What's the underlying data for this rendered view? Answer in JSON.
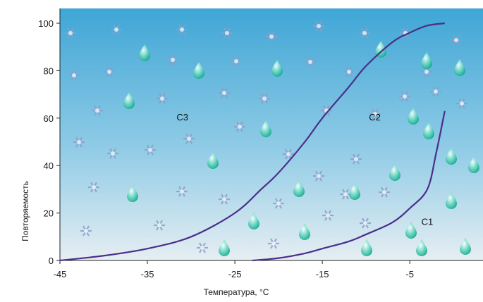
{
  "chart_data": {
    "type": "line",
    "title": "",
    "xlabel": "Температура, °C",
    "ylabel": "Повторяемость",
    "xlim": [
      -45,
      2
    ],
    "ylim": [
      0,
      100
    ],
    "x_ticks": [
      -45,
      -35,
      -25,
      -15,
      -5
    ],
    "y_ticks": [
      0,
      20,
      40,
      60,
      80,
      100
    ],
    "grid": false,
    "legend": "none",
    "series": [
      {
        "name": "C3",
        "color": "#4a2e8a",
        "x": [
          -45,
          -40,
          -35,
          -30,
          -25,
          -22,
          -20,
          -17,
          -15,
          -12,
          -10,
          -7,
          -5,
          -3,
          -1
        ],
        "y": [
          0,
          2,
          5,
          10,
          20,
          30,
          37,
          50,
          60,
          73,
          82,
          92,
          96,
          99,
          100
        ]
      },
      {
        "name": "C2",
        "color": "#4a2e8a",
        "x": [
          -23,
          -20,
          -17,
          -15,
          -12,
          -10,
          -7,
          -5,
          -3,
          -2,
          -1
        ],
        "y": [
          0,
          1,
          3,
          5,
          8,
          11,
          16,
          22,
          30,
          45,
          63
        ]
      }
    ],
    "annotations": [
      {
        "text": "C3",
        "x": -31,
        "y": 59
      },
      {
        "text": "C2",
        "x": -9,
        "y": 59
      },
      {
        "text": "C1",
        "x": -3,
        "y": 15
      }
    ],
    "background": {
      "sky_top": "#3fa6d6",
      "sky_bottom": "#e6eef2",
      "snowflake_color": "#8c9fc8",
      "droplet_color": "#0fa88a"
    }
  }
}
